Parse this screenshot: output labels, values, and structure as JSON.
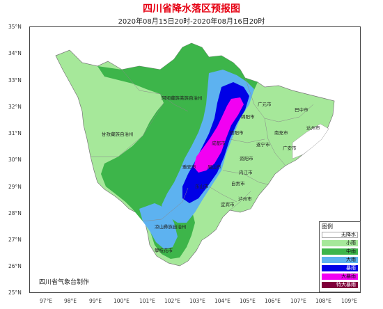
{
  "title": "四川省降水落区预报图",
  "subtitle": "2020年08月15日20时-2020年08月16日20时",
  "credit": "四川省气象台制作",
  "lat_ticks": [
    "35°N",
    "34°N",
    "33°N",
    "32°N",
    "31°N",
    "30°N",
    "29°N",
    "28°N",
    "27°N",
    "26°N",
    "25°N"
  ],
  "lon_ticks": [
    "97°E",
    "98°E",
    "99°E",
    "100°E",
    "101°E",
    "102°E",
    "103°E",
    "104°E",
    "105°E",
    "106°E",
    "107°E",
    "108°E",
    "109°E"
  ],
  "legend": {
    "title": "图例",
    "items": [
      {
        "label": "无降水",
        "color": "#ffffff"
      },
      {
        "label": "小雨",
        "color": "#a6e89a"
      },
      {
        "label": "中雨",
        "color": "#3db54a"
      },
      {
        "label": "大雨",
        "color": "#5db2f0"
      },
      {
        "label": "暴雨",
        "color": "#0000e6"
      },
      {
        "label": "大暴雨",
        "color": "#f200f2"
      },
      {
        "label": "特大暴雨",
        "color": "#80003a"
      }
    ]
  },
  "cities": [
    {
      "name": "阿坝藏族羌族自治州"
    },
    {
      "name": "甘孜藏族自治州"
    },
    {
      "name": "凉山彝族自治州"
    },
    {
      "name": "攀枝花市"
    },
    {
      "name": "广元市"
    },
    {
      "name": "巴中市"
    },
    {
      "name": "达州市"
    },
    {
      "name": "南充市"
    },
    {
      "name": "绵阳市"
    },
    {
      "name": "德阳市"
    },
    {
      "name": "遂宁市"
    },
    {
      "name": "广安市"
    },
    {
      "name": "成都市"
    },
    {
      "name": "资阳市"
    },
    {
      "name": "内江市"
    },
    {
      "name": "自贡市"
    },
    {
      "name": "雅安市"
    },
    {
      "name": "眉山市"
    },
    {
      "name": "乐山市"
    },
    {
      "name": "宜宾市"
    },
    {
      "name": "泸州市"
    }
  ]
}
